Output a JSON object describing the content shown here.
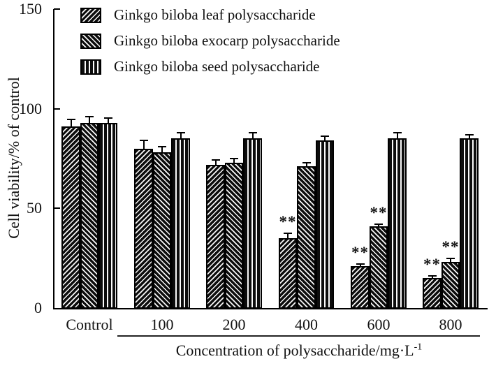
{
  "figure": {
    "y_axis": {
      "title": "Cell viability/% of control",
      "ticks": [
        0,
        50,
        100,
        150
      ]
    },
    "x_axis": {
      "group_labels": [
        "Control",
        "100",
        "200",
        "400",
        "600",
        "800"
      ],
      "title_main": "Concentration of polysaccharide/mg·L",
      "title_sup": "-1"
    },
    "legend": [
      {
        "label": "Ginkgo biloba leaf polysaccharide",
        "pattern": "diag-up",
        "swatch": "diagonal-up-hatch-icon"
      },
      {
        "label": "Ginkgo biloba exocarp polysaccharide",
        "pattern": "diag-down",
        "swatch": "diagonal-down-hatch-icon"
      },
      {
        "label": "Ginkgo biloba seed polysaccharide",
        "pattern": "vertical",
        "swatch": "vertical-hatch-icon"
      }
    ],
    "sig_marker": "**",
    "colors": {
      "ink": "#000000",
      "background": "#ffffff"
    }
  },
  "chart_data": {
    "type": "bar",
    "title": "",
    "xlabel": "Concentration of polysaccharide/mg·L⁻¹",
    "ylabel": "Cell viability/% of control",
    "ylim": [
      0,
      150
    ],
    "grid": false,
    "legend_position": "top-left-inside",
    "categories": [
      "Control",
      "100",
      "200",
      "400",
      "600",
      "800"
    ],
    "series": [
      {
        "name": "Ginkgo biloba leaf polysaccharide",
        "pattern": "diag-up",
        "values": [
          91,
          80,
          72,
          35,
          21,
          15
        ],
        "errors": [
          3.5,
          4,
          2.2,
          2.5,
          1,
          1
        ],
        "significant": [
          false,
          false,
          false,
          true,
          true,
          true
        ]
      },
      {
        "name": "Ginkgo biloba exocarp polysaccharide",
        "pattern": "diag-down",
        "values": [
          93,
          78,
          73,
          71,
          41,
          23
        ],
        "errors": [
          3,
          2.8,
          2.1,
          2,
          1,
          2
        ],
        "significant": [
          false,
          false,
          false,
          false,
          true,
          true
        ]
      },
      {
        "name": "Ginkgo biloba seed polysaccharide",
        "pattern": "vertical",
        "values": [
          93,
          85,
          85,
          84,
          85,
          85
        ],
        "errors": [
          2.5,
          3,
          3,
          2.2,
          3,
          2
        ],
        "significant": [
          false,
          false,
          false,
          false,
          false,
          false
        ]
      }
    ]
  }
}
